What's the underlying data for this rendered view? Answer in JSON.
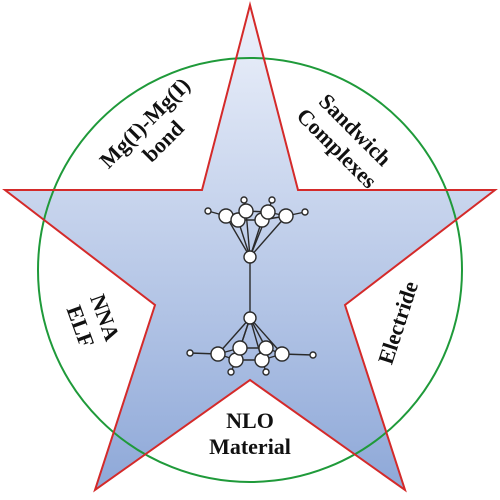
{
  "colors": {
    "star_stroke": "#d42a2a",
    "circle_stroke": "#1f9a3a",
    "star_fill_top": "#eef2fb",
    "star_fill_bottom": "#8ea8d8",
    "molecule": "#2a2a2a"
  },
  "labels": {
    "mgmg": [
      "Mg(I)-Mg(I)",
      "bond"
    ],
    "sandwich": [
      "Sandwich",
      "Complexes"
    ],
    "nna": [
      "NNA",
      "ELF"
    ],
    "electride": [
      "Electride"
    ],
    "nlo": [
      "NLO",
      "Material"
    ]
  },
  "molecule": {
    "description_icon": "Mg2-sandwich-molecule-icon"
  }
}
